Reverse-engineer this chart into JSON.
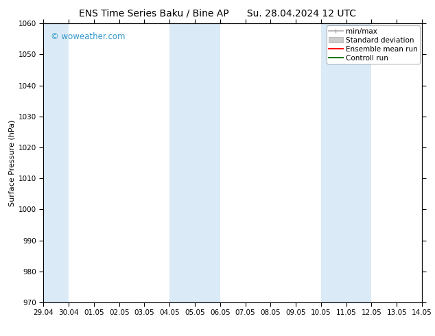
{
  "title_left": "ENS Time Series Baku / Bine AP",
  "title_right": "Su. 28.04.2024 12 UTC",
  "ylabel": "Surface Pressure (hPa)",
  "ylim": [
    970,
    1060
  ],
  "yticks": [
    970,
    980,
    990,
    1000,
    1010,
    1020,
    1030,
    1040,
    1050,
    1060
  ],
  "xtick_labels": [
    "29.04",
    "30.04",
    "01.05",
    "02.05",
    "03.05",
    "04.05",
    "05.05",
    "06.05",
    "07.05",
    "08.05",
    "09.05",
    "10.05",
    "11.05",
    "12.05",
    "13.05",
    "14.05"
  ],
  "shaded_bands": [
    {
      "xstart": 0,
      "xend": 1,
      "color": "#daeaf6"
    },
    {
      "xstart": 5,
      "xend": 7,
      "color": "#daeaf6"
    },
    {
      "xstart": 11,
      "xend": 13,
      "color": "#daeaf6"
    }
  ],
  "watermark": "© woweather.com",
  "watermark_color": "#3399cc",
  "background_color": "#ffffff",
  "plot_bg_color": "#ffffff",
  "legend_items": [
    {
      "label": "min/max",
      "color": "#aaaaaa",
      "style": "minmax"
    },
    {
      "label": "Standard deviation",
      "color": "#cccccc",
      "style": "stddev"
    },
    {
      "label": "Ensemble mean run",
      "color": "#ff0000",
      "style": "line"
    },
    {
      "label": "Controll run",
      "color": "#007700",
      "style": "line"
    }
  ],
  "title_fontsize": 10,
  "axis_fontsize": 8,
  "tick_fontsize": 7.5,
  "legend_fontsize": 7.5,
  "watermark_fontsize": 8.5
}
